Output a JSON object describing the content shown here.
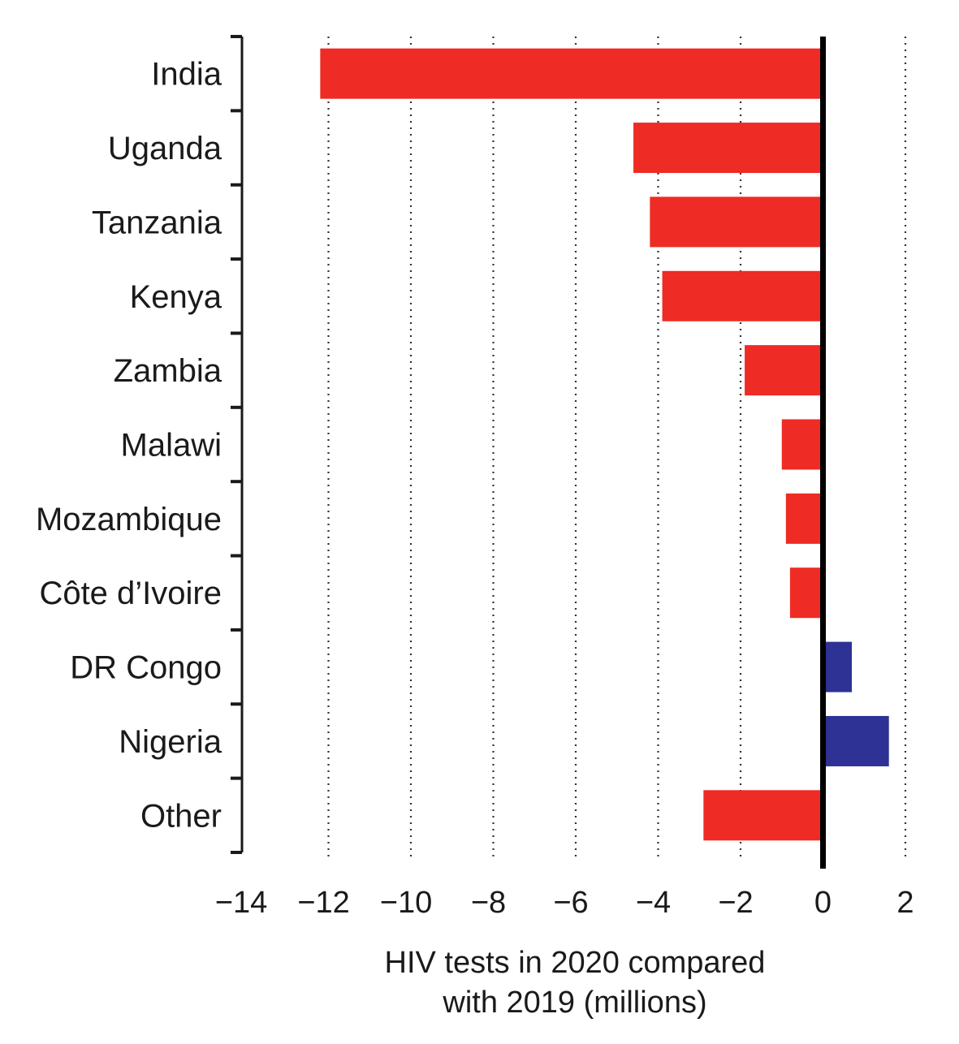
{
  "chart_data": {
    "type": "bar",
    "orientation": "horizontal",
    "categories": [
      "India",
      "Uganda",
      "Tanzania",
      "Kenya",
      "Zambia",
      "Malawi",
      "Mozambique",
      "Côte d’Ivoire",
      "DR Congo",
      "Nigeria",
      "Other"
    ],
    "values": [
      -12.2,
      -4.6,
      -4.2,
      -3.9,
      -1.9,
      -1.0,
      -0.9,
      -0.8,
      0.7,
      1.6,
      -2.9
    ],
    "xlim": [
      -14,
      2
    ],
    "xticks": [
      -14,
      -12,
      -10,
      -8,
      -6,
      -4,
      -2,
      0,
      2
    ],
    "xtick_labels": [
      "−14",
      "−12",
      "−10",
      "−8",
      "−6",
      "−4",
      "−2",
      "0",
      "2"
    ],
    "xlabel_line1": "HIV tests in 2020 compared",
    "xlabel_line2": "with 2019 (millions)",
    "grid": true,
    "colors": {
      "negative": "#ee2b24",
      "positive": "#2d3294",
      "zero_line": "#000000",
      "axis": "#1a1a1a"
    }
  }
}
